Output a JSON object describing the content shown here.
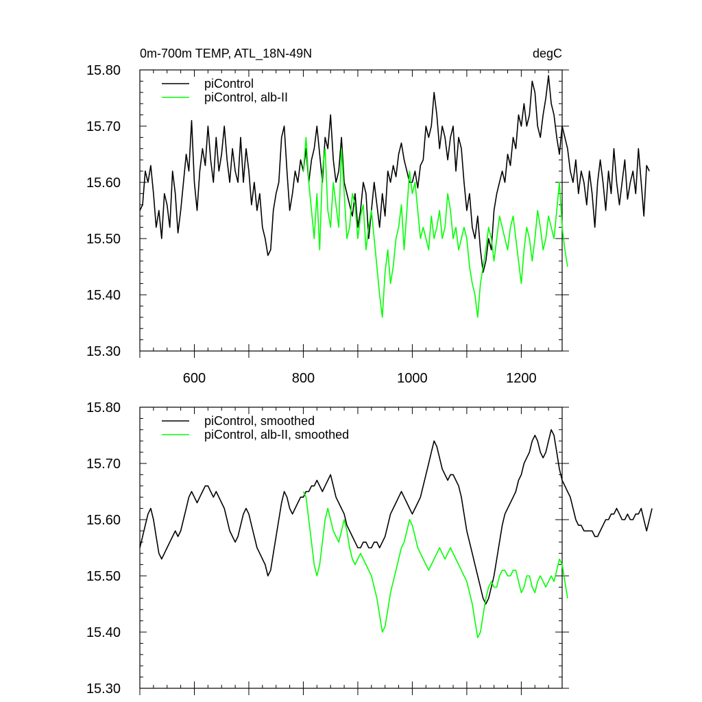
{
  "title_left": "0m-700m TEMP, ATL_18N-49N",
  "title_right": "degC",
  "chart_data": [
    {
      "type": "line",
      "xlim": [
        500,
        1275
      ],
      "ylim": [
        15.3,
        15.8
      ],
      "xticks": [
        600,
        800,
        1000,
        1200
      ],
      "xtick_labels": [
        "600",
        "800",
        "1000",
        "1200"
      ],
      "yticks": [
        15.3,
        15.4,
        15.5,
        15.6,
        15.7,
        15.8
      ],
      "ytick_labels": [
        "15.30",
        "15.40",
        "15.50",
        "15.60",
        "15.70",
        "15.80"
      ],
      "grid": false,
      "legend_position": "top-left",
      "series": [
        {
          "name": "piControl",
          "color": "#000000",
          "x_start": 500,
          "x_step": 5,
          "values": [
            15.55,
            15.56,
            15.62,
            15.6,
            15.63,
            15.58,
            15.52,
            15.55,
            15.5,
            15.58,
            15.56,
            15.52,
            15.62,
            15.58,
            15.51,
            15.55,
            15.6,
            15.65,
            15.62,
            15.71,
            15.6,
            15.55,
            15.62,
            15.66,
            15.63,
            15.7,
            15.64,
            15.6,
            15.68,
            15.62,
            15.65,
            15.7,
            15.64,
            15.6,
            15.66,
            15.62,
            15.6,
            15.68,
            15.6,
            15.66,
            15.62,
            15.56,
            15.6,
            15.55,
            15.58,
            15.52,
            15.5,
            15.47,
            15.48,
            15.55,
            15.58,
            15.6,
            15.68,
            15.7,
            15.62,
            15.55,
            15.58,
            15.62,
            15.6,
            15.64,
            15.62,
            15.66,
            15.6,
            15.64,
            15.66,
            15.7,
            15.65,
            15.6,
            15.68,
            15.66,
            15.72,
            15.64,
            15.6,
            15.62,
            15.68,
            15.6,
            15.58,
            15.56,
            15.54,
            15.58,
            15.52,
            15.55,
            15.6,
            15.58,
            15.5,
            15.55,
            15.6,
            15.56,
            15.52,
            15.58,
            15.54,
            15.62,
            15.6,
            15.63,
            15.61,
            15.65,
            15.67,
            15.64,
            15.62,
            15.6,
            15.6,
            15.62,
            15.59,
            15.63,
            15.64,
            15.7,
            15.68,
            15.7,
            15.76,
            15.72,
            15.66,
            15.7,
            15.68,
            15.64,
            15.68,
            15.7,
            15.62,
            15.68,
            15.66,
            15.6,
            15.55,
            15.58,
            15.52,
            15.5,
            15.54,
            15.48,
            15.44,
            15.46,
            15.5,
            15.48,
            15.55,
            15.58,
            15.6,
            15.62,
            15.6,
            15.65,
            15.63,
            15.68,
            15.66,
            15.72,
            15.7,
            15.74,
            15.7,
            15.72,
            15.78,
            15.76,
            15.7,
            15.68,
            15.72,
            15.75,
            15.79,
            15.74,
            15.72,
            15.68,
            15.65,
            15.7,
            15.68,
            15.66,
            15.62,
            15.6,
            15.64,
            15.58,
            15.62,
            15.6,
            15.56,
            15.62,
            15.58,
            15.52,
            15.6,
            15.64,
            15.6,
            15.55,
            15.62,
            15.58,
            15.66,
            15.6,
            15.56,
            15.6,
            15.64,
            15.57,
            15.6,
            15.62,
            15.58,
            15.66,
            15.6,
            15.54,
            15.63,
            15.62
          ]
        },
        {
          "name": "piControl, alb-II",
          "color": "#00ff00",
          "x_start": 800,
          "x_step": 5,
          "values": [
            15.62,
            15.68,
            15.6,
            15.55,
            15.5,
            15.58,
            15.48,
            15.62,
            15.66,
            15.55,
            15.52,
            15.6,
            15.56,
            15.52,
            15.66,
            15.58,
            15.5,
            15.52,
            15.58,
            15.56,
            15.5,
            15.54,
            15.56,
            15.48,
            15.52,
            15.55,
            15.5,
            15.45,
            15.4,
            15.36,
            15.44,
            15.48,
            15.42,
            15.45,
            15.5,
            15.52,
            15.56,
            15.48,
            15.55,
            15.62,
            15.58,
            15.6,
            15.55,
            15.5,
            15.52,
            15.5,
            15.48,
            15.54,
            15.5,
            15.52,
            15.55,
            15.5,
            15.52,
            15.58,
            15.55,
            15.5,
            15.52,
            15.48,
            15.5,
            15.52,
            15.5,
            15.45,
            15.42,
            15.4,
            15.36,
            15.42,
            15.45,
            15.48,
            15.52,
            15.5,
            15.46,
            15.5,
            15.54,
            15.52,
            15.5,
            15.48,
            15.52,
            15.54,
            15.5,
            15.46,
            15.42,
            15.48,
            15.52,
            15.5,
            15.46,
            15.5,
            15.55,
            15.52,
            15.48,
            15.5,
            15.54,
            15.52,
            15.5,
            15.55,
            15.6,
            15.52,
            15.48,
            15.45
          ]
        }
      ]
    },
    {
      "type": "line",
      "xlim": [
        500,
        1275
      ],
      "ylim": [
        15.3,
        15.8
      ],
      "yticks": [
        15.3,
        15.4,
        15.5,
        15.6,
        15.7,
        15.8
      ],
      "ytick_labels": [
        "15.30",
        "15.40",
        "15.50",
        "15.60",
        "15.70",
        "15.80"
      ],
      "grid": false,
      "legend_position": "top-left",
      "series": [
        {
          "name": "piControl, smoothed",
          "color": "#000000",
          "x_start": 500,
          "x_step": 5,
          "values": [
            15.55,
            15.57,
            15.59,
            15.61,
            15.62,
            15.6,
            15.57,
            15.54,
            15.53,
            15.54,
            15.55,
            15.56,
            15.57,
            15.58,
            15.57,
            15.58,
            15.6,
            15.62,
            15.64,
            15.65,
            15.64,
            15.63,
            15.64,
            15.65,
            15.66,
            15.66,
            15.65,
            15.64,
            15.65,
            15.64,
            15.63,
            15.62,
            15.6,
            15.58,
            15.57,
            15.56,
            15.57,
            15.59,
            15.61,
            15.62,
            15.61,
            15.59,
            15.57,
            15.55,
            15.54,
            15.53,
            15.52,
            15.5,
            15.51,
            15.54,
            15.57,
            15.6,
            15.63,
            15.65,
            15.64,
            15.62,
            15.61,
            15.62,
            15.63,
            15.64,
            15.64,
            15.65,
            15.65,
            15.66,
            15.66,
            15.67,
            15.66,
            15.65,
            15.66,
            15.67,
            15.68,
            15.66,
            15.64,
            15.63,
            15.62,
            15.61,
            15.59,
            15.58,
            15.57,
            15.56,
            15.55,
            15.55,
            15.56,
            15.56,
            15.55,
            15.55,
            15.56,
            15.56,
            15.55,
            15.56,
            15.57,
            15.59,
            15.61,
            15.62,
            15.63,
            15.64,
            15.65,
            15.64,
            15.63,
            15.62,
            15.61,
            15.62,
            15.63,
            15.64,
            15.66,
            15.68,
            15.7,
            15.72,
            15.74,
            15.73,
            15.71,
            15.69,
            15.68,
            15.67,
            15.68,
            15.68,
            15.67,
            15.66,
            15.64,
            15.61,
            15.58,
            15.56,
            15.54,
            15.52,
            15.5,
            15.48,
            15.46,
            15.45,
            15.46,
            15.48,
            15.5,
            15.53,
            15.56,
            15.59,
            15.61,
            15.62,
            15.63,
            15.64,
            15.65,
            15.67,
            15.68,
            15.7,
            15.71,
            15.72,
            15.74,
            15.75,
            15.74,
            15.72,
            15.71,
            15.72,
            15.74,
            15.76,
            15.75,
            15.72,
            15.69,
            15.67,
            15.66,
            15.65,
            15.64,
            15.62,
            15.6,
            15.59,
            15.59,
            15.58,
            15.58,
            15.58,
            15.58,
            15.57,
            15.57,
            15.58,
            15.59,
            15.6,
            15.6,
            15.61,
            15.61,
            15.62,
            15.61,
            15.6,
            15.6,
            15.61,
            15.6,
            15.6,
            15.61,
            15.61,
            15.62,
            15.6,
            15.58,
            15.6,
            15.62
          ]
        },
        {
          "name": "piControl, alb-II, smoothed",
          "color": "#00ff00",
          "x_start": 800,
          "x_step": 5,
          "values": [
            15.65,
            15.64,
            15.6,
            15.56,
            15.52,
            15.5,
            15.52,
            15.56,
            15.6,
            15.62,
            15.6,
            15.58,
            15.57,
            15.56,
            15.58,
            15.6,
            15.58,
            15.55,
            15.53,
            15.52,
            15.53,
            15.54,
            15.53,
            15.52,
            15.51,
            15.5,
            15.48,
            15.46,
            15.43,
            15.4,
            15.41,
            15.44,
            15.47,
            15.49,
            15.51,
            15.53,
            15.55,
            15.56,
            15.58,
            15.6,
            15.59,
            15.57,
            15.55,
            15.54,
            15.53,
            15.52,
            15.51,
            15.52,
            15.53,
            15.54,
            15.55,
            15.54,
            15.53,
            15.54,
            15.55,
            15.54,
            15.53,
            15.52,
            15.51,
            15.5,
            15.49,
            15.47,
            15.45,
            15.42,
            15.39,
            15.4,
            15.43,
            15.46,
            15.48,
            15.49,
            15.48,
            15.48,
            15.5,
            15.51,
            15.51,
            15.5,
            15.5,
            15.51,
            15.51,
            15.49,
            15.47,
            15.48,
            15.5,
            15.5,
            15.48,
            15.47,
            15.49,
            15.5,
            15.49,
            15.48,
            15.49,
            15.5,
            15.49,
            15.51,
            15.53,
            15.52,
            15.49,
            15.46
          ]
        }
      ]
    }
  ]
}
